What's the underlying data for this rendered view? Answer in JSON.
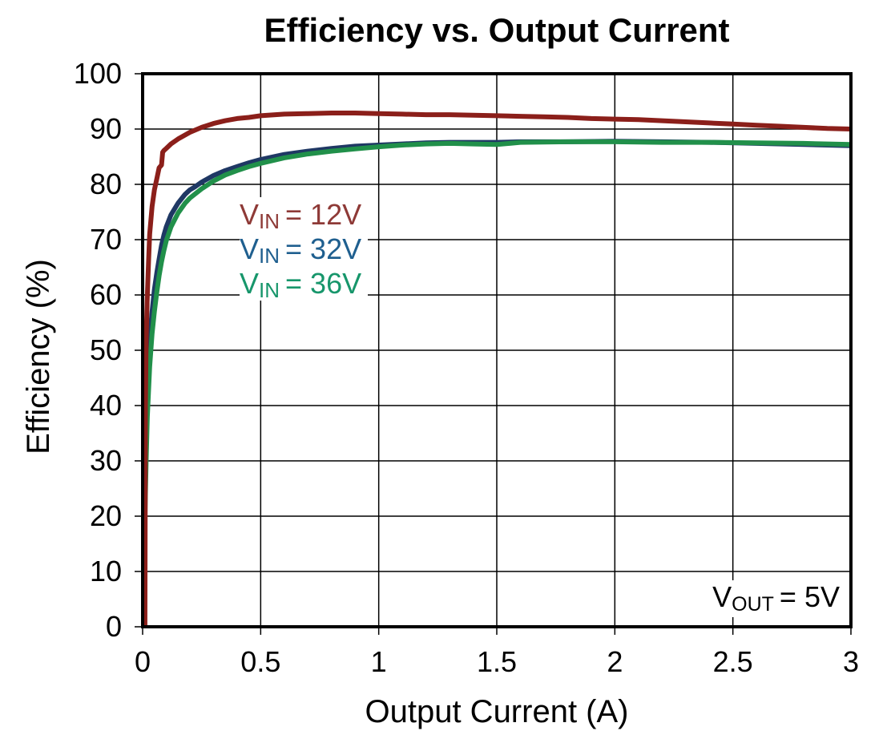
{
  "chart_data": {
    "type": "line",
    "title": "Efficiency vs. Output Current",
    "xlabel": "Output Current (A)",
    "ylabel": "Efficiency (%)",
    "xlim": [
      0,
      3
    ],
    "ylim": [
      0,
      100
    ],
    "xticks": [
      0,
      0.5,
      1,
      1.5,
      2,
      2.5,
      3
    ],
    "xtick_labels": [
      "0",
      "0.5",
      "1",
      "1.5",
      "2",
      "2.5",
      "3"
    ],
    "yticks": [
      0,
      10,
      20,
      30,
      40,
      50,
      60,
      70,
      80,
      90,
      100
    ],
    "ytick_labels": [
      "0",
      "10",
      "20",
      "30",
      "40",
      "50",
      "60",
      "70",
      "80",
      "90",
      "100"
    ],
    "grid": true,
    "legend_position": "inside-upper-left",
    "annotation": {
      "base": "V",
      "sub": "OUT",
      "eq": "=",
      "value": "5V",
      "color": "#000000"
    },
    "series": [
      {
        "id": "vin-12v",
        "label": {
          "base": "V",
          "sub": "IN",
          "eq": "=",
          "value": "12V"
        },
        "color": "#8B1F1A",
        "legend_color": "#8E3A37",
        "points": [
          [
            0.01,
            0
          ],
          [
            0.012,
            40
          ],
          [
            0.015,
            52
          ],
          [
            0.02,
            60
          ],
          [
            0.025,
            66
          ],
          [
            0.03,
            71
          ],
          [
            0.04,
            76
          ],
          [
            0.05,
            79
          ],
          [
            0.06,
            81
          ],
          [
            0.07,
            83
          ],
          [
            0.08,
            83.5
          ],
          [
            0.085,
            85.8
          ],
          [
            0.09,
            86.1
          ],
          [
            0.1,
            86.5
          ],
          [
            0.12,
            87.3
          ],
          [
            0.15,
            88.2
          ],
          [
            0.2,
            89.4
          ],
          [
            0.25,
            90.3
          ],
          [
            0.3,
            91.0
          ],
          [
            0.35,
            91.5
          ],
          [
            0.4,
            91.9
          ],
          [
            0.45,
            92.1
          ],
          [
            0.5,
            92.4
          ],
          [
            0.6,
            92.7
          ],
          [
            0.7,
            92.8
          ],
          [
            0.8,
            92.9
          ],
          [
            0.9,
            92.9
          ],
          [
            1.0,
            92.8
          ],
          [
            1.1,
            92.7
          ],
          [
            1.2,
            92.6
          ],
          [
            1.3,
            92.6
          ],
          [
            1.4,
            92.5
          ],
          [
            1.5,
            92.4
          ],
          [
            1.6,
            92.3
          ],
          [
            1.7,
            92.2
          ],
          [
            1.8,
            92.1
          ],
          [
            1.9,
            91.9
          ],
          [
            2.0,
            91.8
          ],
          [
            2.1,
            91.7
          ],
          [
            2.2,
            91.5
          ],
          [
            2.3,
            91.3
          ],
          [
            2.4,
            91.1
          ],
          [
            2.5,
            90.9
          ],
          [
            2.6,
            90.7
          ],
          [
            2.7,
            90.5
          ],
          [
            2.8,
            90.3
          ],
          [
            2.9,
            90.1
          ],
          [
            3.0,
            90.0
          ]
        ]
      },
      {
        "id": "vin-32v",
        "label": {
          "base": "V",
          "sub": "IN",
          "eq": "=",
          "value": "32V"
        },
        "color": "#1F3864",
        "legend_color": "#1F5F8F",
        "points": [
          [
            0.005,
            0
          ],
          [
            0.008,
            25
          ],
          [
            0.012,
            35
          ],
          [
            0.02,
            45
          ],
          [
            0.03,
            52
          ],
          [
            0.04,
            57
          ],
          [
            0.05,
            61
          ],
          [
            0.06,
            64
          ],
          [
            0.07,
            66.5
          ],
          [
            0.08,
            69
          ],
          [
            0.09,
            70.8
          ],
          [
            0.1,
            72.3
          ],
          [
            0.12,
            74.5
          ],
          [
            0.15,
            76.6
          ],
          [
            0.18,
            78.2
          ],
          [
            0.2,
            79.0
          ],
          [
            0.22,
            79.5
          ],
          [
            0.25,
            80.4
          ],
          [
            0.3,
            81.6
          ],
          [
            0.35,
            82.5
          ],
          [
            0.4,
            83.2
          ],
          [
            0.45,
            83.9
          ],
          [
            0.5,
            84.5
          ],
          [
            0.6,
            85.4
          ],
          [
            0.7,
            86.0
          ],
          [
            0.8,
            86.5
          ],
          [
            0.9,
            86.9
          ],
          [
            1.0,
            87.1
          ],
          [
            1.1,
            87.3
          ],
          [
            1.2,
            87.5
          ],
          [
            1.3,
            87.6
          ],
          [
            1.4,
            87.6
          ],
          [
            1.5,
            87.6
          ],
          [
            1.6,
            87.7
          ],
          [
            1.8,
            87.7
          ],
          [
            2.0,
            87.8
          ],
          [
            2.2,
            87.7
          ],
          [
            2.4,
            87.6
          ],
          [
            2.6,
            87.4
          ],
          [
            2.8,
            87.2
          ],
          [
            3.0,
            87.0
          ]
        ]
      },
      {
        "id": "vin-36v",
        "label": {
          "base": "V",
          "sub": "IN",
          "eq": "=",
          "value": "36V"
        },
        "color": "#21904A",
        "legend_color": "#17966B",
        "points": [
          [
            0.005,
            0
          ],
          [
            0.01,
            20
          ],
          [
            0.015,
            30
          ],
          [
            0.02,
            38
          ],
          [
            0.03,
            47
          ],
          [
            0.04,
            53
          ],
          [
            0.05,
            57
          ],
          [
            0.06,
            60.5
          ],
          [
            0.07,
            63.5
          ],
          [
            0.08,
            66
          ],
          [
            0.09,
            68
          ],
          [
            0.1,
            69.8
          ],
          [
            0.12,
            72.3
          ],
          [
            0.15,
            74.8
          ],
          [
            0.18,
            76.6
          ],
          [
            0.2,
            77.5
          ],
          [
            0.25,
            79.2
          ],
          [
            0.3,
            80.6
          ],
          [
            0.35,
            81.7
          ],
          [
            0.4,
            82.5
          ],
          [
            0.45,
            83.2
          ],
          [
            0.5,
            83.8
          ],
          [
            0.6,
            84.8
          ],
          [
            0.7,
            85.5
          ],
          [
            0.8,
            86.0
          ],
          [
            0.9,
            86.4
          ],
          [
            1.0,
            86.8
          ],
          [
            1.1,
            87.1
          ],
          [
            1.2,
            87.3
          ],
          [
            1.3,
            87.4
          ],
          [
            1.4,
            87.3
          ],
          [
            1.5,
            87.2
          ],
          [
            1.6,
            87.6
          ],
          [
            1.8,
            87.7
          ],
          [
            2.0,
            87.7
          ],
          [
            2.2,
            87.6
          ],
          [
            2.4,
            87.6
          ],
          [
            2.6,
            87.5
          ],
          [
            2.8,
            87.4
          ],
          [
            3.0,
            87.2
          ]
        ]
      }
    ]
  },
  "colors": {
    "background": "#FFFFFF",
    "axis_border": "#000000",
    "gridline": "#000000",
    "title_text": "#000000",
    "tick_text": "#000000"
  }
}
